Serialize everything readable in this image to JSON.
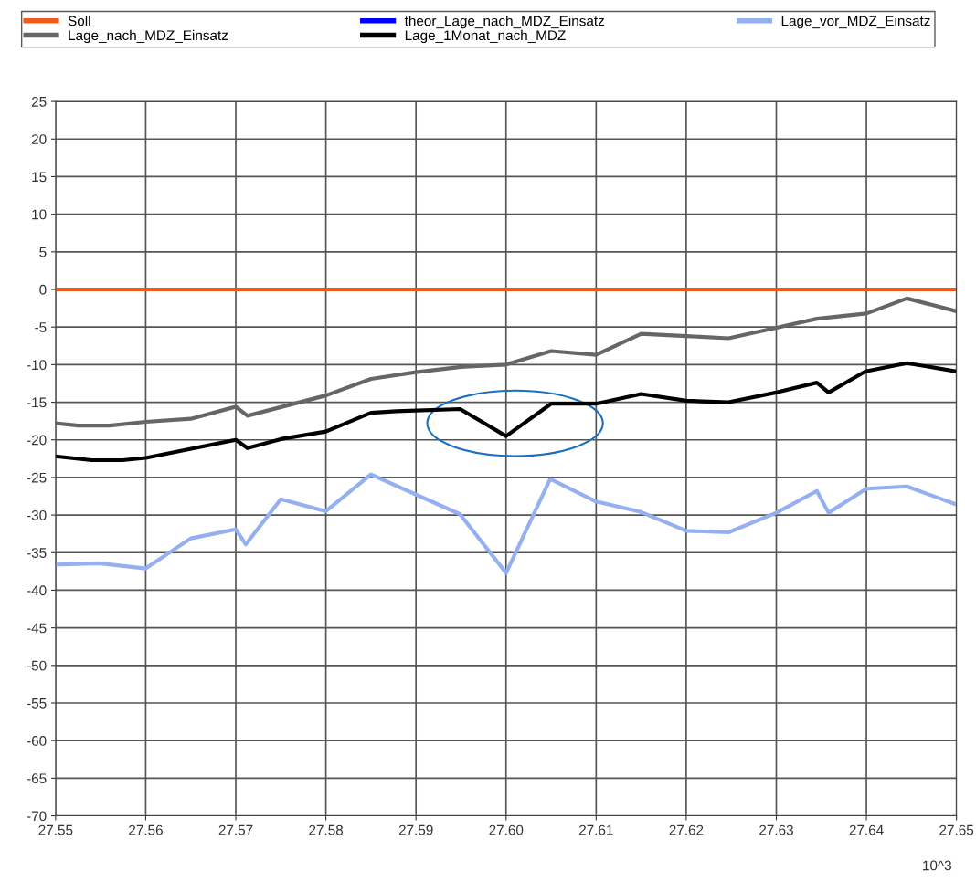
{
  "chart_data": {
    "type": "line",
    "xlim": [
      27.55,
      27.65
    ],
    "xticks": [
      27.55,
      27.56,
      27.57,
      27.58,
      27.59,
      {
        "value": 27.6,
        "label": "27.60"
      },
      27.61,
      27.62,
      27.63,
      27.64,
      27.65
    ],
    "ylim": [
      -70,
      25
    ],
    "yticks": [
      -70,
      -65,
      -60,
      -55,
      -50,
      -45,
      -40,
      -35,
      -30,
      -25,
      -20,
      -15,
      -10,
      -5,
      0,
      5,
      10,
      15,
      20,
      25
    ],
    "grid": true,
    "legend": "top",
    "marker": "none",
    "line_style": "solid",
    "annotations": [
      "10^3"
    ],
    "series": [
      {
        "name": "Soll",
        "color": "#f05a1e",
        "x": [
          27.55,
          27.65
        ],
        "values": [
          0,
          0
        ]
      },
      {
        "name": "Lage_nach_MDZ_Einsatz",
        "color": "#666666",
        "x": [
          27.55,
          27.5525,
          27.556,
          27.56,
          27.565,
          27.57,
          27.5713,
          27.58,
          27.585,
          27.59,
          27.595,
          27.6,
          27.605,
          27.61,
          27.615,
          27.62,
          27.6247,
          27.63,
          27.6345,
          27.64,
          27.6445,
          27.65
        ],
        "values": [
          -17.8,
          -18.1,
          -18.1,
          -17.6,
          -17.2,
          -15.6,
          -16.8,
          -14.1,
          -11.9,
          -11.0,
          -10.3,
          -10.0,
          -8.2,
          -8.7,
          -5.9,
          -6.2,
          -6.5,
          -5.1,
          -3.9,
          -3.2,
          -1.2,
          -2.9
        ]
      },
      {
        "name": "theor_Lage_nach_MDZ_Einsatz",
        "color": "#0000ff"
      },
      {
        "name": "Lage_1Monat_nach_MDZ",
        "color": "#000000",
        "x": [
          27.55,
          27.554,
          27.5574,
          27.56,
          27.57,
          27.5713,
          27.575,
          27.58,
          27.585,
          27.5878,
          27.5949,
          27.6,
          27.605,
          27.61,
          27.615,
          27.62,
          27.6247,
          27.63,
          27.6345,
          27.6358,
          27.6399,
          27.6445,
          27.65
        ],
        "values": [
          -22.2,
          -22.7,
          -22.7,
          -22.4,
          -20.0,
          -21.1,
          -19.9,
          -18.9,
          -16.4,
          -16.2,
          -15.9,
          -19.5,
          -15.2,
          -15.2,
          -13.9,
          -14.8,
          -15.0,
          -13.7,
          -12.4,
          -13.7,
          -10.9,
          -9.8,
          -10.9
        ]
      },
      {
        "name": "Lage_vor_MDZ_Einsatz",
        "color": "#94b0f0",
        "x": [
          27.55,
          27.5548,
          27.56,
          27.565,
          27.57,
          27.5711,
          27.575,
          27.58,
          27.585,
          27.5949,
          27.6,
          27.6049,
          27.61,
          27.615,
          27.62,
          27.6247,
          27.63,
          27.6345,
          27.6358,
          27.64,
          27.6445,
          27.65
        ],
        "values": [
          -36.6,
          -36.4,
          -37.1,
          -33.1,
          -31.9,
          -33.9,
          -27.9,
          -29.5,
          -24.6,
          -29.9,
          -37.7,
          -25.2,
          -28.2,
          -29.6,
          -32.1,
          -32.3,
          -29.7,
          -26.8,
          -29.7,
          -26.5,
          -26.2,
          -28.6
        ]
      }
    ]
  }
}
